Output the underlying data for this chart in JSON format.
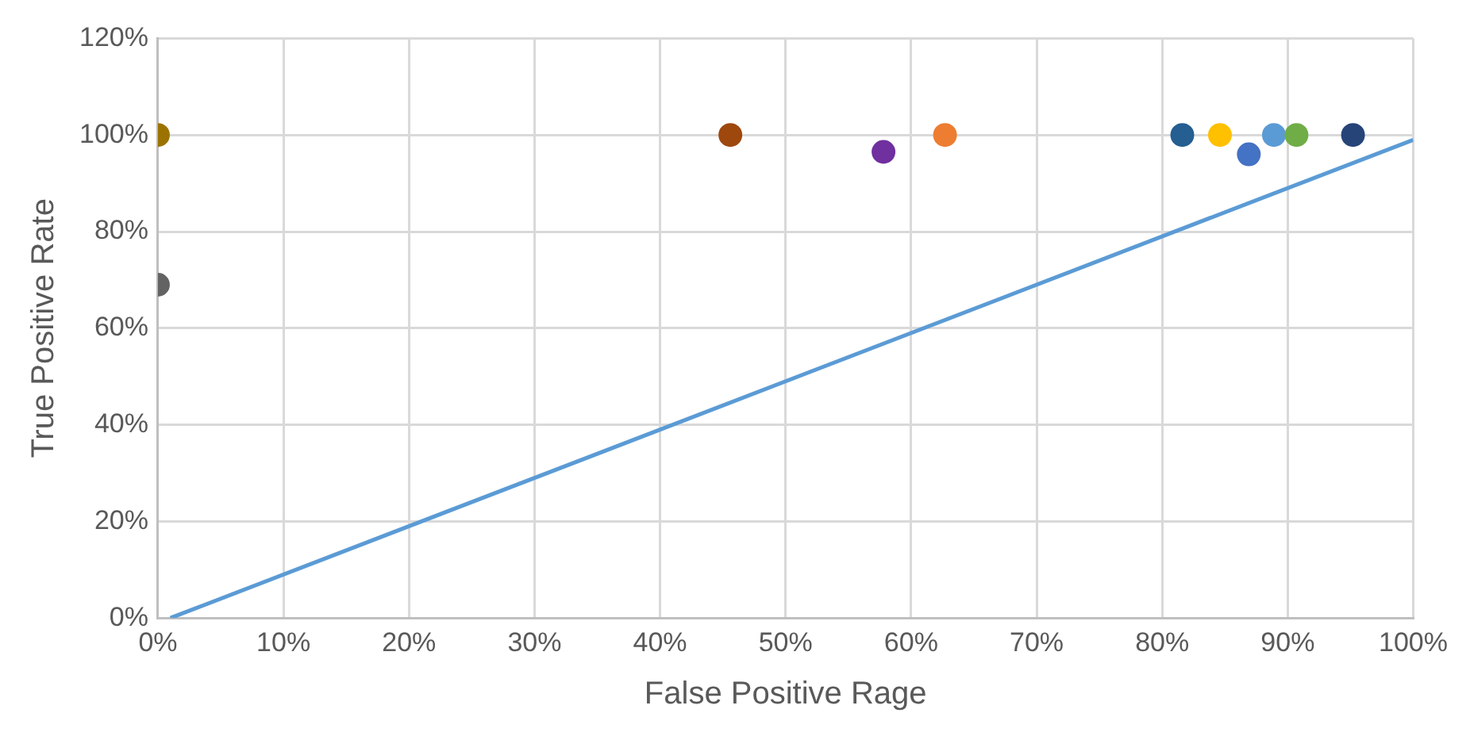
{
  "chart_data": {
    "type": "scatter",
    "xlabel": "False Positive Rage",
    "ylabel": "True Positive Rate",
    "x": [
      0,
      0,
      45.6,
      57.8,
      62.7,
      81.6,
      84.6,
      86.9,
      88.9,
      90.7,
      95.2
    ],
    "series": [
      {
        "values": [
          100,
          69,
          100,
          96.5,
          100,
          100,
          100,
          96,
          100,
          100,
          100
        ],
        "colors": [
          "#9c7300",
          "#636363",
          "#9e480e",
          "#7030a0",
          "#ed7d31",
          "#255e91",
          "#ffc000",
          "#4472c4",
          "#5b9bd5",
          "#70ad47",
          "#264478"
        ]
      },
      {
        "type": "line",
        "x": [
          1,
          100
        ],
        "values": [
          0,
          99
        ],
        "color": "#5b9bd5",
        "marker": "none"
      }
    ],
    "xlim": [
      0,
      100
    ],
    "xticks": [
      {
        "value": 0,
        "label": "0%"
      },
      {
        "value": 10,
        "label": "10%"
      },
      {
        "value": 20,
        "label": "20%"
      },
      {
        "value": 30,
        "label": "30%"
      },
      {
        "value": 40,
        "label": "40%"
      },
      {
        "value": 50,
        "label": "50%"
      },
      {
        "value": 60,
        "label": "60%"
      },
      {
        "value": 70,
        "label": "70%"
      },
      {
        "value": 80,
        "label": "80%"
      },
      {
        "value": 90,
        "label": "90%"
      },
      {
        "value": 100,
        "label": "100%"
      }
    ],
    "ylim": [
      0,
      120
    ],
    "yticks": [
      {
        "value": 0,
        "label": "0%"
      },
      {
        "value": 20,
        "label": "20%"
      },
      {
        "value": 40,
        "label": "40%"
      },
      {
        "value": 60,
        "label": "60%"
      },
      {
        "value": 80,
        "label": "80%"
      },
      {
        "value": 100,
        "label": "100%"
      },
      {
        "value": 120,
        "label": "120%"
      }
    ],
    "grid": true,
    "marker": "circle"
  }
}
